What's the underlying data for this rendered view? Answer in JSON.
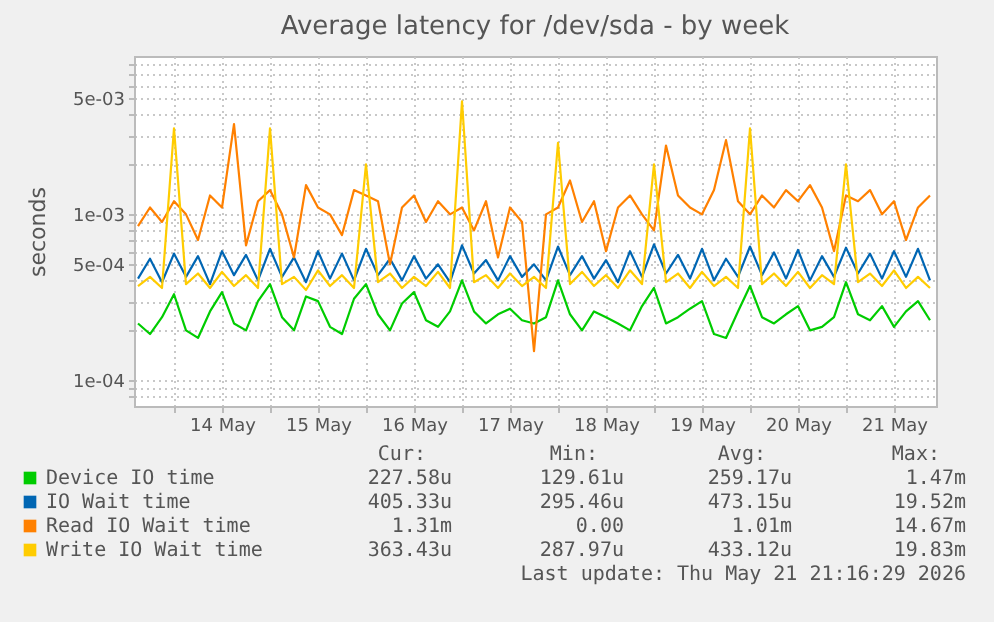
{
  "chart_data": {
    "type": "line",
    "title": "Average latency for /dev/sda - by week",
    "ylabel": "seconds",
    "log": "y",
    "grid": true,
    "legend": "bottom",
    "xlim": [
      "2026-05-13T14:00",
      "2026-05-21T22:30"
    ],
    "xticks": [
      {
        "value": "2026-05-14T00:00",
        "label": null
      },
      {
        "value": "2026-05-14T12:00",
        "label": "14 May"
      },
      {
        "value": "2026-05-15T00:00",
        "label": null
      },
      {
        "value": "2026-05-15T12:00",
        "label": "15 May"
      },
      {
        "value": "2026-05-16T00:00",
        "label": null
      },
      {
        "value": "2026-05-16T12:00",
        "label": "16 May"
      },
      {
        "value": "2026-05-17T00:00",
        "label": null
      },
      {
        "value": "2026-05-17T12:00",
        "label": "17 May"
      },
      {
        "value": "2026-05-18T00:00",
        "label": null
      },
      {
        "value": "2026-05-18T12:00",
        "label": "18 May"
      },
      {
        "value": "2026-05-19T00:00",
        "label": null
      },
      {
        "value": "2026-05-19T12:00",
        "label": "19 May"
      },
      {
        "value": "2026-05-20T00:00",
        "label": null
      },
      {
        "value": "2026-05-20T12:00",
        "label": "20 May"
      },
      {
        "value": "2026-05-21T00:00",
        "label": null
      },
      {
        "value": "2026-05-21T12:00",
        "label": "21 May"
      }
    ],
    "ylim": [
      7e-05,
      0.009
    ],
    "yticks": [
      {
        "value": 8e-05,
        "label": null
      },
      {
        "value": 9e-05,
        "label": null
      },
      {
        "value": 0.0001,
        "label": "1e-04"
      },
      {
        "value": 0.0002,
        "label": null
      },
      {
        "value": 0.0003,
        "label": null
      },
      {
        "value": 0.0004,
        "label": null
      },
      {
        "value": 0.0005,
        "label": "5e-04"
      },
      {
        "value": 0.0006,
        "label": null
      },
      {
        "value": 0.0007,
        "label": null
      },
      {
        "value": 0.0008,
        "label": null
      },
      {
        "value": 0.0009,
        "label": null
      },
      {
        "value": 0.001,
        "label": "1e-03"
      },
      {
        "value": 0.002,
        "label": null
      },
      {
        "value": 0.003,
        "label": null
      },
      {
        "value": 0.004,
        "label": null
      },
      {
        "value": 0.005,
        "label": "5e-03"
      },
      {
        "value": 0.006,
        "label": null
      },
      {
        "value": 0.007,
        "label": null
      },
      {
        "value": 0.008,
        "label": null
      }
    ],
    "x": [
      "2026-05-13T15:00",
      "2026-05-13T18:00",
      "2026-05-13T21:00",
      "2026-05-14T00:00",
      "2026-05-14T03:00",
      "2026-05-14T06:00",
      "2026-05-14T09:00",
      "2026-05-14T12:00",
      "2026-05-14T15:00",
      "2026-05-14T18:00",
      "2026-05-14T21:00",
      "2026-05-15T00:00",
      "2026-05-15T03:00",
      "2026-05-15T06:00",
      "2026-05-15T09:00",
      "2026-05-15T12:00",
      "2026-05-15T15:00",
      "2026-05-15T18:00",
      "2026-05-15T21:00",
      "2026-05-16T00:00",
      "2026-05-16T03:00",
      "2026-05-16T06:00",
      "2026-05-16T09:00",
      "2026-05-16T12:00",
      "2026-05-16T15:00",
      "2026-05-16T18:00",
      "2026-05-16T21:00",
      "2026-05-17T00:00",
      "2026-05-17T03:00",
      "2026-05-17T06:00",
      "2026-05-17T09:00",
      "2026-05-17T12:00",
      "2026-05-17T15:00",
      "2026-05-17T18:00",
      "2026-05-17T21:00",
      "2026-05-18T00:00",
      "2026-05-18T03:00",
      "2026-05-18T06:00",
      "2026-05-18T09:00",
      "2026-05-18T12:00",
      "2026-05-18T15:00",
      "2026-05-18T18:00",
      "2026-05-18T21:00",
      "2026-05-19T00:00",
      "2026-05-19T03:00",
      "2026-05-19T06:00",
      "2026-05-19T09:00",
      "2026-05-19T12:00",
      "2026-05-19T15:00",
      "2026-05-19T18:00",
      "2026-05-19T21:00",
      "2026-05-20T00:00",
      "2026-05-20T03:00",
      "2026-05-20T06:00",
      "2026-05-20T09:00",
      "2026-05-20T12:00",
      "2026-05-20T15:00",
      "2026-05-20T18:00",
      "2026-05-20T21:00",
      "2026-05-21T00:00",
      "2026-05-21T03:00",
      "2026-05-21T06:00",
      "2026-05-21T09:00",
      "2026-05-21T12:00",
      "2026-05-21T15:00",
      "2026-05-21T18:00",
      "2026-05-21T21:00"
    ],
    "series": [
      {
        "name": "Device IO time",
        "color": "#00cc00",
        "values": [
          0.00022,
          0.00019,
          0.00024,
          0.00033,
          0.0002,
          0.00018,
          0.00026,
          0.00034,
          0.00022,
          0.0002,
          0.0003,
          0.00038,
          0.00024,
          0.0002,
          0.00032,
          0.0003,
          0.00021,
          0.00019,
          0.00031,
          0.00038,
          0.00025,
          0.0002,
          0.00029,
          0.00034,
          0.00023,
          0.00021,
          0.00026,
          0.0004,
          0.00026,
          0.00022,
          0.00025,
          0.00027,
          0.00023,
          0.00022,
          0.00024,
          0.0004,
          0.00025,
          0.0002,
          0.00026,
          0.00024,
          0.00022,
          0.0002,
          0.00028,
          0.00036,
          0.00022,
          0.00024,
          0.00027,
          0.0003,
          0.00019,
          0.00018,
          0.00026,
          0.00037,
          0.00024,
          0.00022,
          0.00025,
          0.00028,
          0.0002,
          0.00021,
          0.00024,
          0.00039,
          0.00025,
          0.00023,
          0.00028,
          0.00021,
          0.00026,
          0.0003,
          0.00023
        ]
      },
      {
        "name": "IO Wait time",
        "color": "#0066b3",
        "values": [
          0.00041,
          0.00054,
          0.00039,
          0.00058,
          0.00042,
          0.00056,
          0.00038,
          0.0006,
          0.00043,
          0.00057,
          0.0004,
          0.00062,
          0.00042,
          0.00055,
          0.00039,
          0.0006,
          0.00041,
          0.00058,
          0.0004,
          0.00062,
          0.00043,
          0.00054,
          0.0004,
          0.00056,
          0.00041,
          0.0005,
          0.00039,
          0.00065,
          0.00044,
          0.00053,
          0.0004,
          0.00056,
          0.00042,
          0.0005,
          0.0004,
          0.00064,
          0.00043,
          0.00056,
          0.00041,
          0.00053,
          0.00039,
          0.0006,
          0.00042,
          0.00066,
          0.00044,
          0.00057,
          0.00041,
          0.00062,
          0.0004,
          0.00054,
          0.00042,
          0.00064,
          0.00043,
          0.00059,
          0.00041,
          0.00061,
          0.0004,
          0.00056,
          0.00042,
          0.00063,
          0.00044,
          0.00058,
          0.00041,
          0.0006,
          0.00042,
          0.00062,
          0.0004
        ]
      },
      {
        "name": "Read IO Wait time",
        "color": "#ff8000",
        "values": [
          0.00085,
          0.0011,
          0.0009,
          0.0012,
          0.001,
          0.0007,
          0.0013,
          0.0011,
          0.0035,
          0.00065,
          0.0012,
          0.0014,
          0.001,
          0.00055,
          0.0015,
          0.0011,
          0.001,
          0.00075,
          0.0014,
          0.0013,
          0.0012,
          0.0005,
          0.0011,
          0.0013,
          0.0009,
          0.0012,
          0.001,
          0.0011,
          0.0008,
          0.0012,
          0.00055,
          0.0011,
          0.0009,
          0.00015,
          0.001,
          0.0011,
          0.0016,
          0.0009,
          0.0012,
          0.0006,
          0.0011,
          0.0013,
          0.001,
          0.0008,
          0.0026,
          0.0013,
          0.0011,
          0.001,
          0.0014,
          0.0028,
          0.0012,
          0.001,
          0.0013,
          0.0011,
          0.0014,
          0.0012,
          0.0015,
          0.0011,
          0.0006,
          0.0013,
          0.0012,
          0.0014,
          0.001,
          0.0012,
          0.0007,
          0.0011,
          0.0013
        ]
      },
      {
        "name": "Write IO Wait time",
        "color": "#ffcc00",
        "values": [
          0.00037,
          0.00042,
          0.00036,
          0.0033,
          0.00038,
          0.00044,
          0.00036,
          0.00045,
          0.00037,
          0.00043,
          0.00036,
          0.0033,
          0.00038,
          0.00042,
          0.00035,
          0.00046,
          0.00037,
          0.00043,
          0.00036,
          0.002,
          0.00039,
          0.00044,
          0.00036,
          0.00042,
          0.00037,
          0.00045,
          0.00036,
          0.0048,
          0.00039,
          0.00043,
          0.00036,
          0.00044,
          0.00037,
          0.00042,
          0.00036,
          0.0027,
          0.00038,
          0.00045,
          0.00037,
          0.00043,
          0.00036,
          0.00046,
          0.00038,
          0.002,
          0.00039,
          0.00044,
          0.00036,
          0.00045,
          0.00037,
          0.00042,
          0.00036,
          0.0033,
          0.00038,
          0.00044,
          0.00037,
          0.00045,
          0.00036,
          0.00043,
          0.00038,
          0.002,
          0.00039,
          0.00044,
          0.00037,
          0.00046,
          0.00036,
          0.00042,
          0.00036
        ]
      }
    ],
    "annotations": [
      "Cur:",
      "Min:",
      "Avg:",
      "Max:",
      "227.58u",
      "129.61u",
      "259.17u",
      "1.47m",
      "405.33u",
      "295.46u",
      "473.15u",
      "19.52m",
      "1.31m",
      "0.00",
      "1.01m",
      "14.67m",
      "363.43u",
      "287.97u",
      "433.12u",
      "19.83m",
      "Last update: Thu May 21 21:16:29 2026"
    ]
  }
}
